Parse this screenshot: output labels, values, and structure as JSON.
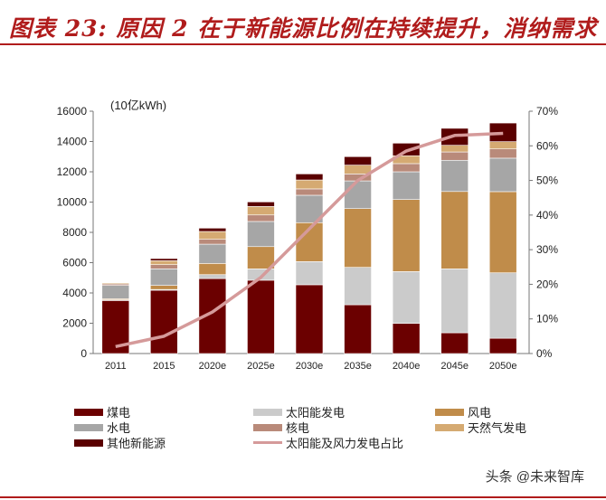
{
  "title": "图表 23: 原因 2 在于新能源比例在持续提升，消纳需求",
  "watermark": "头条 @未来智库",
  "chart_data": {
    "type": "bar+line",
    "stacked": true,
    "ylabel": "(10亿kWh)",
    "ylim": [
      0,
      16000
    ],
    "yticks": [
      0,
      2000,
      4000,
      6000,
      8000,
      10000,
      12000,
      14000,
      16000
    ],
    "y2lim": [
      0,
      70
    ],
    "y2ticks": [
      "0%",
      "10%",
      "20%",
      "30%",
      "40%",
      "50%",
      "60%",
      "70%"
    ],
    "grid": false,
    "legend_placement": "bottom",
    "categories": [
      "2011",
      "2015",
      "2020e",
      "2025e",
      "2030e",
      "2035e",
      "2040e",
      "2045e",
      "2050e"
    ],
    "series": [
      {
        "name": "煤电",
        "color": "#6b0000",
        "values": [
          3500,
          4180,
          4950,
          4840,
          4540,
          3220,
          1990,
          1370,
          1010
        ]
      },
      {
        "name": "太阳能发电",
        "color": "#cbcbcb",
        "values": [
          50,
          50,
          260,
          750,
          1530,
          2470,
          3420,
          4220,
          4320
        ]
      },
      {
        "name": "风电",
        "color": "#c08c4a",
        "values": [
          70,
          270,
          740,
          1470,
          2570,
          3880,
          4760,
          5110,
          5360
        ]
      },
      {
        "name": "水电",
        "color": "#a6a6a6",
        "values": [
          880,
          1090,
          1270,
          1660,
          1810,
          1830,
          1830,
          2060,
          2210
        ]
      },
      {
        "name": "核电",
        "color": "#b98a7a",
        "values": [
          100,
          280,
          320,
          430,
          420,
          460,
          540,
          550,
          610
        ]
      },
      {
        "name": "天然气发电",
        "color": "#d5aa72",
        "values": [
          70,
          260,
          520,
          560,
          590,
          580,
          520,
          440,
          480
        ]
      },
      {
        "name": "其他新能源",
        "color": "#5a0000",
        "values": [
          30,
          140,
          220,
          300,
          400,
          560,
          830,
          1120,
          1230
        ]
      }
    ],
    "line": {
      "name": "太阳能及风力发电占比",
      "color": "#d59a9a",
      "axis": "right",
      "values": [
        2,
        5,
        12,
        22,
        36,
        50,
        58.5,
        63,
        63.6
      ]
    }
  }
}
